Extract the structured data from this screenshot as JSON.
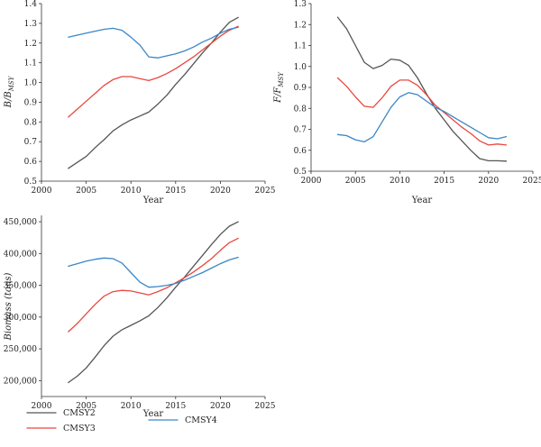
{
  "colors": {
    "CMSY2": "#555555",
    "CMSY3": "#e8483f",
    "CMSY4": "#3a86c8"
  },
  "legend": {
    "items": [
      {
        "key": "CMSY2",
        "label": "CMSY2"
      },
      {
        "key": "CMSY3",
        "label": "CMSY3"
      },
      {
        "key": "CMSY4",
        "label": "CMSY4"
      }
    ]
  },
  "chart_data": [
    {
      "type": "line",
      "xlabel": "Year",
      "ylabel": {
        "main": "B/B",
        "sub": "MSY"
      },
      "xlim": [
        2000,
        2025
      ],
      "ylim": [
        0.5,
        1.4
      ],
      "xticks": [
        "2000",
        "2005",
        "2010",
        "2015",
        "2020",
        "2025"
      ],
      "yticks": [
        "0.5",
        "0.6",
        "0.7",
        "0.8",
        "0.9",
        "1.0",
        "1.1",
        "1.2",
        "1.3",
        "1.4"
      ],
      "x": [
        2003,
        2004,
        2005,
        2006,
        2007,
        2008,
        2009,
        2010,
        2011,
        2012,
        2013,
        2014,
        2015,
        2016,
        2017,
        2018,
        2019,
        2020,
        2021,
        2022
      ],
      "series": [
        {
          "name": "CMSY2",
          "values": [
            0.565,
            0.595,
            0.625,
            0.67,
            0.71,
            0.755,
            0.785,
            0.81,
            0.83,
            0.85,
            0.89,
            0.935,
            0.99,
            1.04,
            1.095,
            1.15,
            1.2,
            1.255,
            1.305,
            1.33
          ]
        },
        {
          "name": "CMSY3",
          "values": [
            0.825,
            0.865,
            0.905,
            0.945,
            0.985,
            1.015,
            1.03,
            1.03,
            1.02,
            1.01,
            1.025,
            1.045,
            1.07,
            1.1,
            1.13,
            1.165,
            1.2,
            1.235,
            1.265,
            1.285
          ]
        },
        {
          "name": "CMSY4",
          "values": [
            1.23,
            1.24,
            1.25,
            1.26,
            1.27,
            1.275,
            1.265,
            1.23,
            1.19,
            1.13,
            1.125,
            1.135,
            1.145,
            1.16,
            1.18,
            1.205,
            1.225,
            1.25,
            1.27,
            1.28
          ]
        }
      ]
    },
    {
      "type": "line",
      "xlabel": "Year",
      "ylabel": {
        "main": "F/F",
        "sub": "MSY"
      },
      "xlim": [
        2000,
        2025
      ],
      "ylim": [
        0.5,
        1.3
      ],
      "xticks": [
        "2000",
        "2005",
        "2010",
        "2015",
        "2020",
        "2025"
      ],
      "yticks": [
        "0.5",
        "0.6",
        "0.7",
        "0.8",
        "0.9",
        "1.0",
        "1.1",
        "1.2",
        "1.3"
      ],
      "x": [
        2003,
        2004,
        2005,
        2006,
        2007,
        2008,
        2009,
        2010,
        2011,
        2012,
        2013,
        2014,
        2015,
        2016,
        2017,
        2018,
        2019,
        2020,
        2021,
        2022
      ],
      "series": [
        {
          "name": "CMSY2",
          "values": [
            1.235,
            1.18,
            1.1,
            1.02,
            0.99,
            1.005,
            1.035,
            1.03,
            1.005,
            0.945,
            0.87,
            0.8,
            0.745,
            0.69,
            0.645,
            0.6,
            0.56,
            0.55,
            0.55,
            0.548
          ]
        },
        {
          "name": "CMSY3",
          "values": [
            0.945,
            0.905,
            0.855,
            0.81,
            0.805,
            0.85,
            0.905,
            0.935,
            0.935,
            0.91,
            0.865,
            0.815,
            0.78,
            0.745,
            0.71,
            0.68,
            0.645,
            0.625,
            0.63,
            0.625
          ]
        },
        {
          "name": "CMSY4",
          "values": [
            0.675,
            0.67,
            0.65,
            0.64,
            0.665,
            0.735,
            0.805,
            0.855,
            0.875,
            0.865,
            0.835,
            0.805,
            0.785,
            0.76,
            0.735,
            0.71,
            0.685,
            0.66,
            0.655,
            0.665
          ]
        }
      ]
    },
    {
      "type": "line",
      "xlabel": "Year",
      "ylabel": {
        "main": "Biomass (tons)",
        "sub": ""
      },
      "xlim": [
        2000,
        2025
      ],
      "ylim": [
        175000,
        460000
      ],
      "xticks": [
        "2000",
        "2005",
        "2010",
        "2015",
        "2020",
        "2025"
      ],
      "ytick_values": [
        200000,
        250000,
        300000,
        350000,
        400000,
        450000
      ],
      "yticks": [
        "200,000",
        "250,000",
        "300,000",
        "350,000",
        "400,000",
        "450,000"
      ],
      "x": [
        2003,
        2004,
        2005,
        2006,
        2007,
        2008,
        2009,
        2010,
        2011,
        2012,
        2013,
        2014,
        2015,
        2016,
        2017,
        2018,
        2019,
        2020,
        2021,
        2022
      ],
      "series": [
        {
          "name": "CMSY2",
          "values": [
            197000,
            207000,
            220000,
            237000,
            255000,
            270000,
            280000,
            287000,
            294000,
            302000,
            315000,
            330000,
            347000,
            363000,
            380000,
            397000,
            414000,
            430000,
            443000,
            450000
          ]
        },
        {
          "name": "CMSY3",
          "values": [
            277000,
            290000,
            305000,
            320000,
            333000,
            340000,
            342000,
            341000,
            338000,
            335000,
            340000,
            346000,
            354000,
            362000,
            371000,
            381000,
            392000,
            405000,
            417000,
            424000
          ]
        },
        {
          "name": "CMSY4",
          "values": [
            380000,
            384000,
            388000,
            391000,
            393000,
            392000,
            385000,
            370000,
            355000,
            347000,
            348000,
            350000,
            353000,
            358000,
            364000,
            370000,
            377000,
            384000,
            390000,
            394000
          ]
        }
      ]
    }
  ]
}
